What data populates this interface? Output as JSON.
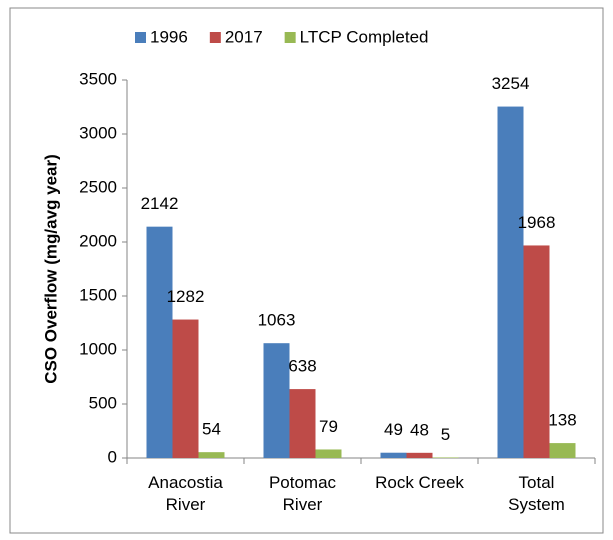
{
  "chart_data": {
    "type": "bar",
    "ylabel": "CSO Overflow (mg/avg year)",
    "categories": [
      "Anacostia\nRiver",
      "Potomac\nRiver",
      "Rock Creek",
      "Total\nSystem"
    ],
    "series": [
      {
        "name": "1996",
        "color": "#4a7ebb",
        "values": [
          2142,
          1063,
          49,
          3254
        ]
      },
      {
        "name": "2017",
        "color": "#be4b48",
        "values": [
          1282,
          638,
          48,
          1968
        ]
      },
      {
        "name": "LTCP Completed",
        "color": "#98b954",
        "values": [
          54,
          79,
          5,
          138
        ]
      }
    ],
    "ylim": [
      0,
      3500
    ],
    "yticks": [
      0,
      500,
      1000,
      1500,
      2000,
      2500,
      3000,
      3500
    ],
    "grid": false,
    "legend": "top"
  }
}
